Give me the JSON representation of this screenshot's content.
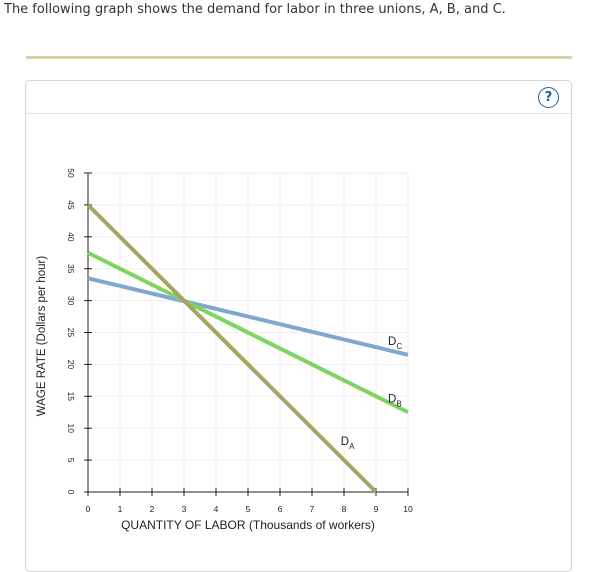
{
  "question_text": "The following graph shows the demand for labor in three unions, A, B, and C.",
  "help_icon": {
    "icon": "help-circle-icon",
    "glyph": "?"
  },
  "colors": {
    "rule": "#d8cfa4",
    "help": "#1f5fa8",
    "series_A": "#a7a462",
    "series_B": "#7fd35f",
    "series_C": "#7fa7cf"
  },
  "chart_data": {
    "type": "line",
    "xlabel": "QUANTITY OF LABOR (Thousands of workers)",
    "ylabel": "WAGE RATE (Dollars per hour)",
    "xlim": [
      0,
      10
    ],
    "ylim": [
      0,
      50
    ],
    "xticks": [
      0,
      1,
      2,
      3,
      4,
      5,
      6,
      7,
      8,
      9,
      10
    ],
    "yticks": [
      0,
      5,
      10,
      15,
      20,
      25,
      30,
      35,
      40,
      45,
      50
    ],
    "grid": true,
    "series": [
      {
        "name": "D",
        "subscript": "C",
        "x": [
          0,
          10
        ],
        "y": [
          33.5,
          21.5
        ]
      },
      {
        "name": "D",
        "subscript": "B",
        "x": [
          0,
          10
        ],
        "y": [
          37.5,
          12.5
        ]
      },
      {
        "name": "D",
        "subscript": "A",
        "x": [
          0,
          9
        ],
        "y": [
          45,
          0
        ]
      }
    ]
  }
}
